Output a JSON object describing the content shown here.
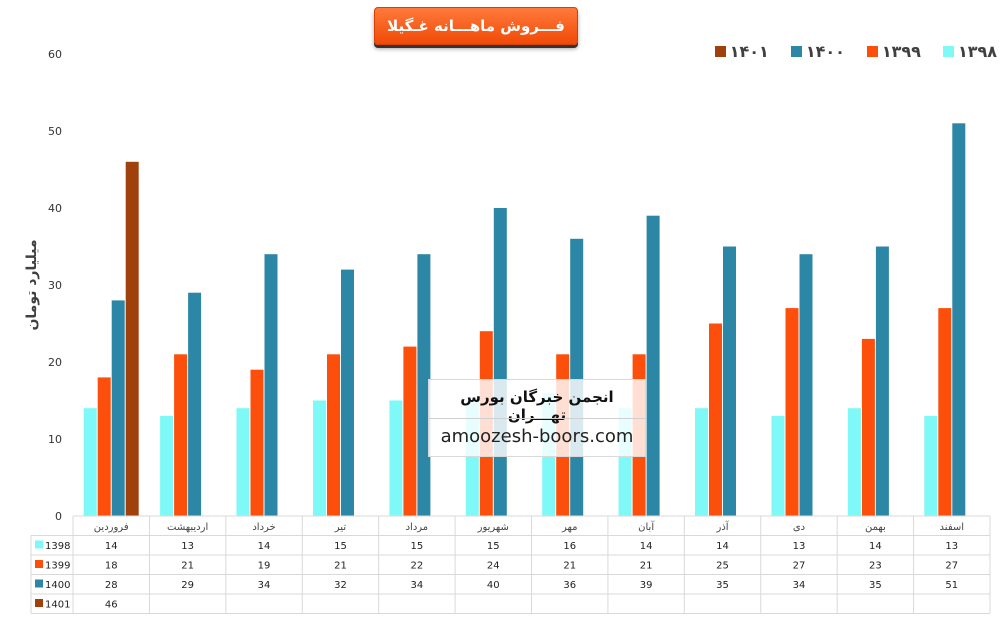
{
  "chart_data": {
    "type": "bar",
    "title": "فـــروش ماهـــانه غـگیلا",
    "ylabel": "میلیارد تومان",
    "ylim": [
      0,
      60
    ],
    "yticks": [
      0,
      10,
      20,
      30,
      40,
      50,
      60
    ],
    "grid": false,
    "legend_position": "top-right",
    "categories": [
      "فروردین",
      "اردیبهشت",
      "خرداد",
      "تیر",
      "مرداد",
      "شهریور",
      "مهر",
      "آبان",
      "آذر",
      "دی",
      "بهمن",
      "اسفند"
    ],
    "series": [
      {
        "name": "1398",
        "legend_label": "۱۳۹۸",
        "color": "#7ef9f7",
        "values": [
          14,
          13,
          14,
          15,
          15,
          15,
          16,
          14,
          14,
          13,
          14,
          13
        ]
      },
      {
        "name": "1399",
        "legend_label": "۱۳۹۹",
        "color": "#fc4f0b",
        "values": [
          18,
          21,
          19,
          21,
          22,
          24,
          21,
          21,
          25,
          27,
          23,
          27
        ]
      },
      {
        "name": "1400",
        "legend_label": "۱۴۰۰",
        "color": "#2c86a5",
        "values": [
          28,
          29,
          34,
          32,
          34,
          40,
          36,
          39,
          35,
          34,
          35,
          51
        ]
      },
      {
        "name": "1401",
        "legend_label": "۱۴۰۱",
        "color": "#a0410d",
        "values": [
          46,
          null,
          null,
          null,
          null,
          null,
          null,
          null,
          null,
          null,
          null,
          null
        ]
      }
    ]
  },
  "watermark": {
    "line1": "انجمن خبرگان بورس تهـــران",
    "line2": "amoozesh-boors.com"
  }
}
